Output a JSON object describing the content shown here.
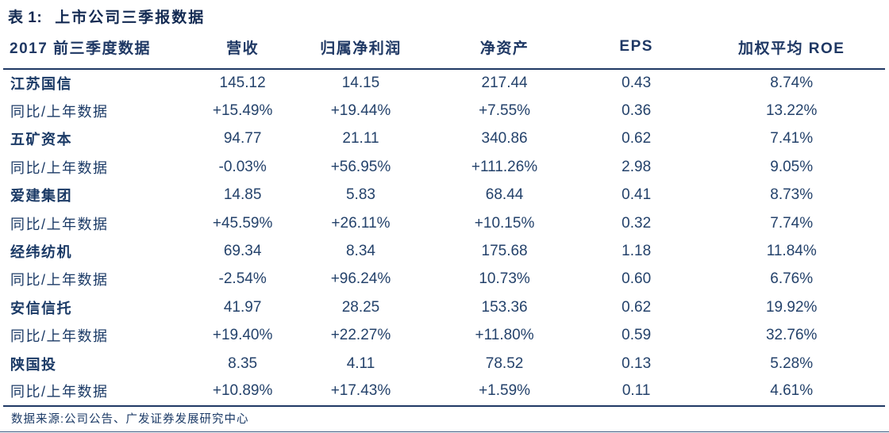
{
  "colors": {
    "text": "#1F3864",
    "rule": "#1F3864",
    "background": "#ffffff"
  },
  "table": {
    "title_prefix": "表 1:",
    "title": "上市公司三季报数据",
    "columns": [
      "2017 前三季度数据",
      "营收",
      "归属净利润",
      "净资产",
      "EPS",
      "加权平均 ROE"
    ],
    "rows": [
      {
        "name": "江苏国信",
        "bold": true,
        "values": [
          "145.12",
          "14.15",
          "217.44",
          "0.43",
          "8.74%"
        ]
      },
      {
        "name": "同比/上年数据",
        "bold": false,
        "values": [
          "+15.49%",
          "+19.44%",
          "+7.55%",
          "0.36",
          "13.22%"
        ]
      },
      {
        "name": "五矿资本",
        "bold": true,
        "values": [
          "94.77",
          "21.11",
          "340.86",
          "0.62",
          "7.41%"
        ]
      },
      {
        "name": "同比/上年数据",
        "bold": false,
        "values": [
          "-0.03%",
          "+56.95%",
          "+111.26%",
          "2.98",
          "9.05%"
        ]
      },
      {
        "name": "爱建集团",
        "bold": true,
        "values": [
          "14.85",
          "5.83",
          "68.44",
          "0.41",
          "8.73%"
        ]
      },
      {
        "name": "同比/上年数据",
        "bold": false,
        "values": [
          "+45.59%",
          "+26.11%",
          "+10.15%",
          "0.32",
          "7.74%"
        ]
      },
      {
        "name": "经纬纺机",
        "bold": true,
        "values": [
          "69.34",
          "8.34",
          "175.68",
          "1.18",
          "11.84%"
        ]
      },
      {
        "name": "同比/上年数据",
        "bold": false,
        "values": [
          "-2.54%",
          "+96.24%",
          "10.73%",
          "0.60",
          "6.76%"
        ]
      },
      {
        "name": "安信信托",
        "bold": true,
        "values": [
          "41.97",
          "28.25",
          "153.36",
          "0.62",
          "19.92%"
        ]
      },
      {
        "name": "同比/上年数据",
        "bold": false,
        "values": [
          "+19.40%",
          "+22.27%",
          "+11.80%",
          "0.59",
          "32.76%"
        ]
      },
      {
        "name": "陕国投",
        "bold": true,
        "values": [
          "8.35",
          "4.11",
          "78.52",
          "0.13",
          "5.28%"
        ]
      },
      {
        "name": "同比/上年数据",
        "bold": false,
        "values": [
          "+10.89%",
          "+17.43%",
          "+1.59%",
          "0.11",
          "4.61%"
        ]
      }
    ],
    "source": "数据来源:公司公告、广发证券发展研究中心"
  }
}
